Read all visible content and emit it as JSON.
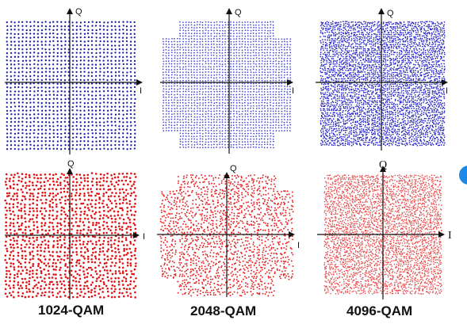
{
  "panels": [
    {
      "id": "qam1024-blue",
      "caption": "",
      "axis_x": "I",
      "axis_y": "Q",
      "color": "#1a1aa8",
      "shape": "square"
    },
    {
      "id": "qam2048-blue",
      "caption": "",
      "axis_x": "I",
      "axis_y": "Q",
      "color": "#3a3ad0",
      "shape": "cross"
    },
    {
      "id": "qam4096-blue",
      "caption": "",
      "axis_x": "I",
      "axis_y": "Q",
      "color": "#1c1cc4",
      "shape": "square"
    },
    {
      "id": "qam1024-red",
      "caption": "1024-QAM",
      "axis_x": "I",
      "axis_y": "Q",
      "color": "#e01010",
      "shape": "square"
    },
    {
      "id": "qam2048-red",
      "caption": "2048-QAM",
      "axis_x": "I",
      "axis_y": "Q",
      "color": "#e82020",
      "shape": "cross"
    },
    {
      "id": "qam4096-red",
      "caption": "4096-QAM",
      "axis_x": "I",
      "axis_y": "Q",
      "color": "#e84040",
      "shape": "square"
    }
  ],
  "captions": {
    "qam1024": "1024-QAM",
    "qam2048": "2048-QAM",
    "qam4096": "4096-QAM"
  },
  "colors": {
    "axis": "#111111",
    "side_marker": "#1e88e5"
  }
}
